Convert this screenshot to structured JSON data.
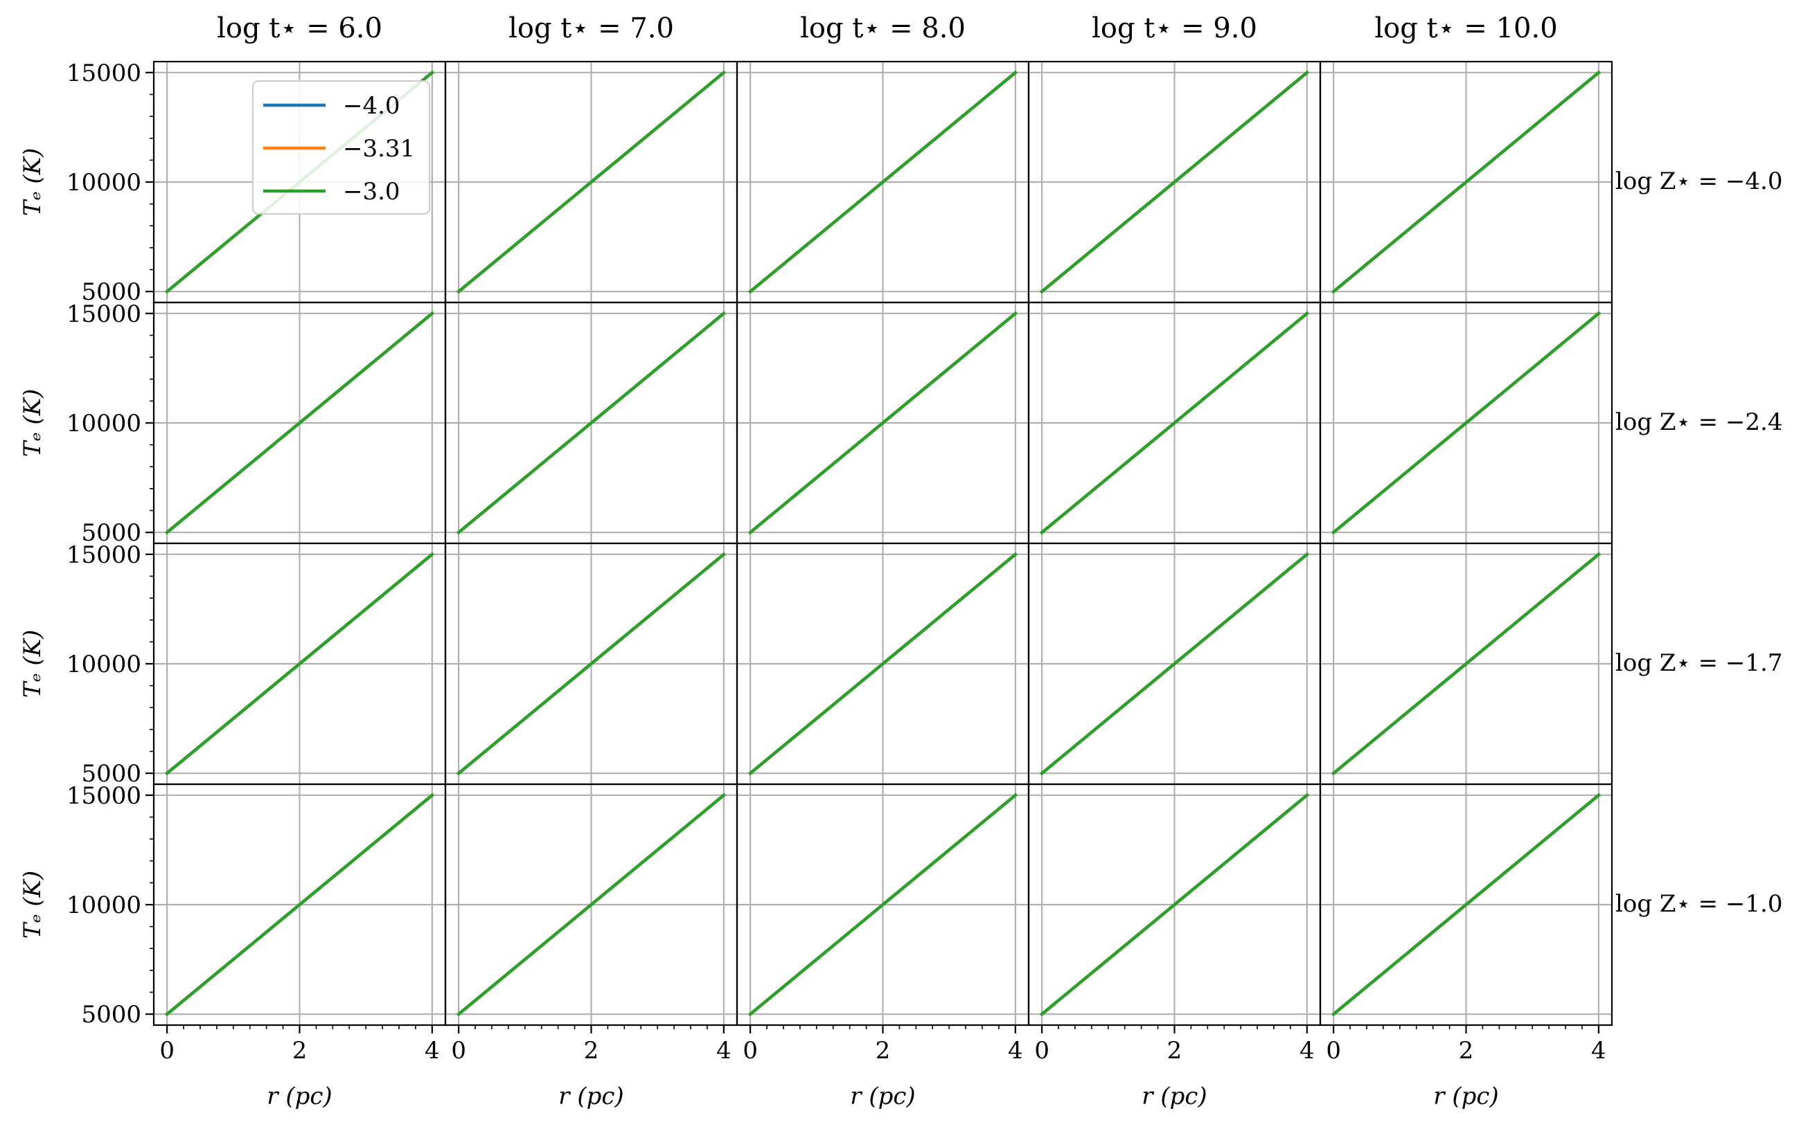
{
  "figure": {
    "column_titles": [
      "log t⋆ = 6.0",
      "log t⋆ = 7.0",
      "log t⋆ = 8.0",
      "log t⋆ = 9.0",
      "log t⋆ = 10.0"
    ],
    "row_titles": [
      "log Z⋆ = −4.0",
      "log Z⋆ = −2.4",
      "log Z⋆ = −1.7",
      "log Z⋆ = −1.0"
    ],
    "xlabel": "r (pc)",
    "ylabel": "Tₑ (K)"
  },
  "legend": {
    "entries": [
      {
        "label": "−4.0",
        "color": "#1f77b4"
      },
      {
        "label": "−3.31",
        "color": "#ff7f0e"
      },
      {
        "label": "−3.0",
        "color": "#2ca02c"
      }
    ]
  },
  "chart_data": {
    "type": "line",
    "layout": "facet-grid 4 rows × 5 columns, shared axes",
    "xlabel": "r (pc)",
    "ylabel": "Tₑ (K)",
    "xlim": [
      -0.2,
      4.2
    ],
    "ylim": [
      4500,
      15500
    ],
    "xticks": [
      0,
      2,
      4
    ],
    "xtick_labels": [
      "0",
      "2",
      "4"
    ],
    "yticks": [
      5000,
      10000,
      15000
    ],
    "ytick_labels": [
      "5000",
      "10000",
      "15000"
    ],
    "grid": true,
    "legend_location": "top of first panel",
    "series": [
      {
        "name": "−4.0",
        "color": "#1f77b4",
        "x": [
          0,
          4
        ],
        "y": [
          5000,
          15000
        ]
      },
      {
        "name": "−3.31",
        "color": "#ff7f0e",
        "x": [
          0,
          4
        ],
        "y": [
          5000,
          15000
        ]
      },
      {
        "name": "−3.0",
        "color": "#2ca02c",
        "x": [
          0,
          4
        ],
        "y": [
          5000,
          15000
        ]
      }
    ],
    "note_same_in_all_panels": true
  }
}
